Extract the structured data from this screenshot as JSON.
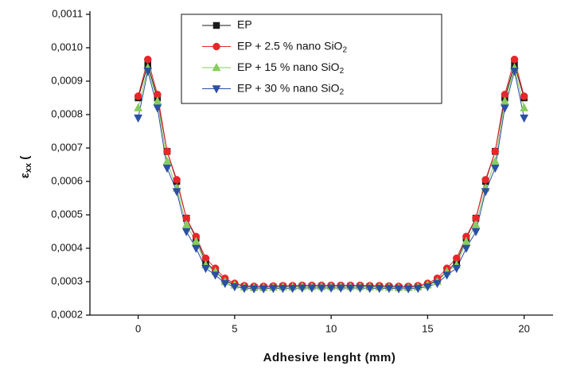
{
  "chart_data": {
    "type": "line",
    "x_label": "Adhesive lenght (mm)",
    "y_label": "ε",
    "y_label_sub": "xx",
    "y_label_tail": " (",
    "x": [
      0,
      0.5,
      1,
      1.5,
      2,
      2.5,
      3,
      3.5,
      4,
      4.5,
      5,
      5.5,
      6,
      6.5,
      7,
      7.5,
      8,
      8.5,
      9,
      9.5,
      10,
      10.5,
      11,
      11.5,
      12,
      12.5,
      13,
      13.5,
      14,
      14.5,
      15,
      15.5,
      16,
      16.5,
      17,
      17.5,
      18,
      18.5,
      19,
      19.5,
      20
    ],
    "series": [
      {
        "name": "EP",
        "color": "#1a1a1a",
        "marker": "square",
        "values": [
          0.00085,
          0.00095,
          0.00085,
          0.00069,
          0.0006,
          0.00049,
          0.00043,
          0.00036,
          0.00033,
          0.000305,
          0.00029,
          0.000285,
          0.000283,
          0.000283,
          0.000284,
          0.000285,
          0.000285,
          0.000286,
          0.000286,
          0.000286,
          0.000286,
          0.000286,
          0.000286,
          0.000286,
          0.000285,
          0.000285,
          0.000284,
          0.000283,
          0.000283,
          0.000285,
          0.00029,
          0.000305,
          0.00033,
          0.00036,
          0.00043,
          0.00049,
          0.0006,
          0.00069,
          0.00085,
          0.00095,
          0.00085
        ]
      },
      {
        "name": "EP + 2.5 % nano SiO2",
        "color": "#e8262a",
        "marker": "circle",
        "values": [
          0.000855,
          0.000965,
          0.00086,
          0.00069,
          0.000605,
          0.00049,
          0.000435,
          0.00037,
          0.00034,
          0.00031,
          0.000295,
          0.000288,
          0.000286,
          0.000286,
          0.000287,
          0.000288,
          0.000288,
          0.000289,
          0.000289,
          0.000289,
          0.000289,
          0.000289,
          0.000289,
          0.000289,
          0.000288,
          0.000288,
          0.000287,
          0.000286,
          0.000286,
          0.000288,
          0.000295,
          0.00031,
          0.00034,
          0.00037,
          0.000435,
          0.00049,
          0.000605,
          0.00069,
          0.00086,
          0.000965,
          0.000855
        ]
      },
      {
        "name": "EP + 15 % nano SiO2",
        "color": "#86cc5e",
        "marker": "triangle-up",
        "values": [
          0.00082,
          0.00094,
          0.00084,
          0.00066,
          0.00058,
          0.00047,
          0.00042,
          0.00035,
          0.00033,
          0.0003,
          0.00029,
          0.000284,
          0.000282,
          0.000282,
          0.000283,
          0.000284,
          0.000284,
          0.000285,
          0.000285,
          0.000285,
          0.000285,
          0.000285,
          0.000285,
          0.000285,
          0.000284,
          0.000284,
          0.000283,
          0.000282,
          0.000282,
          0.000284,
          0.00029,
          0.0003,
          0.00033,
          0.00035,
          0.00042,
          0.00047,
          0.00058,
          0.00066,
          0.00084,
          0.00094,
          0.00082
        ]
      },
      {
        "name": "EP + 30 % nano SiO2",
        "color": "#2b4fa3",
        "marker": "triangle-down",
        "values": [
          0.00079,
          0.00093,
          0.00082,
          0.00064,
          0.00057,
          0.00045,
          0.0004,
          0.00034,
          0.00032,
          0.000295,
          0.000285,
          0.00028,
          0.000279,
          0.000279,
          0.00028,
          0.00028,
          0.00028,
          0.000281,
          0.000281,
          0.000281,
          0.000281,
          0.000281,
          0.000281,
          0.000281,
          0.00028,
          0.00028,
          0.00028,
          0.000279,
          0.000279,
          0.00028,
          0.000285,
          0.000295,
          0.00032,
          0.00034,
          0.0004,
          0.00045,
          0.00057,
          0.00064,
          0.00082,
          0.00093,
          0.00079
        ]
      }
    ],
    "xlim": [
      -2.5,
      21.5
    ],
    "xticks": [
      0,
      5,
      10,
      15,
      20
    ],
    "ylim": [
      0.0002,
      0.0011
    ],
    "yticks": [
      {
        "value": 0.0002,
        "label": "0,0002"
      },
      {
        "value": 0.0003,
        "label": "0,0003"
      },
      {
        "value": 0.0004,
        "label": "0,0004"
      },
      {
        "value": 0.0005,
        "label": "0,0005"
      },
      {
        "value": 0.0006,
        "label": "0,0006"
      },
      {
        "value": 0.0007,
        "label": "0,0007"
      },
      {
        "value": 0.0008,
        "label": "0,0008"
      },
      {
        "value": 0.0009,
        "label": "0,0009"
      },
      {
        "value": 0.001,
        "label": "0,0010"
      },
      {
        "value": 0.0011,
        "label": "0,0011"
      }
    ],
    "legend": "upper-center"
  }
}
